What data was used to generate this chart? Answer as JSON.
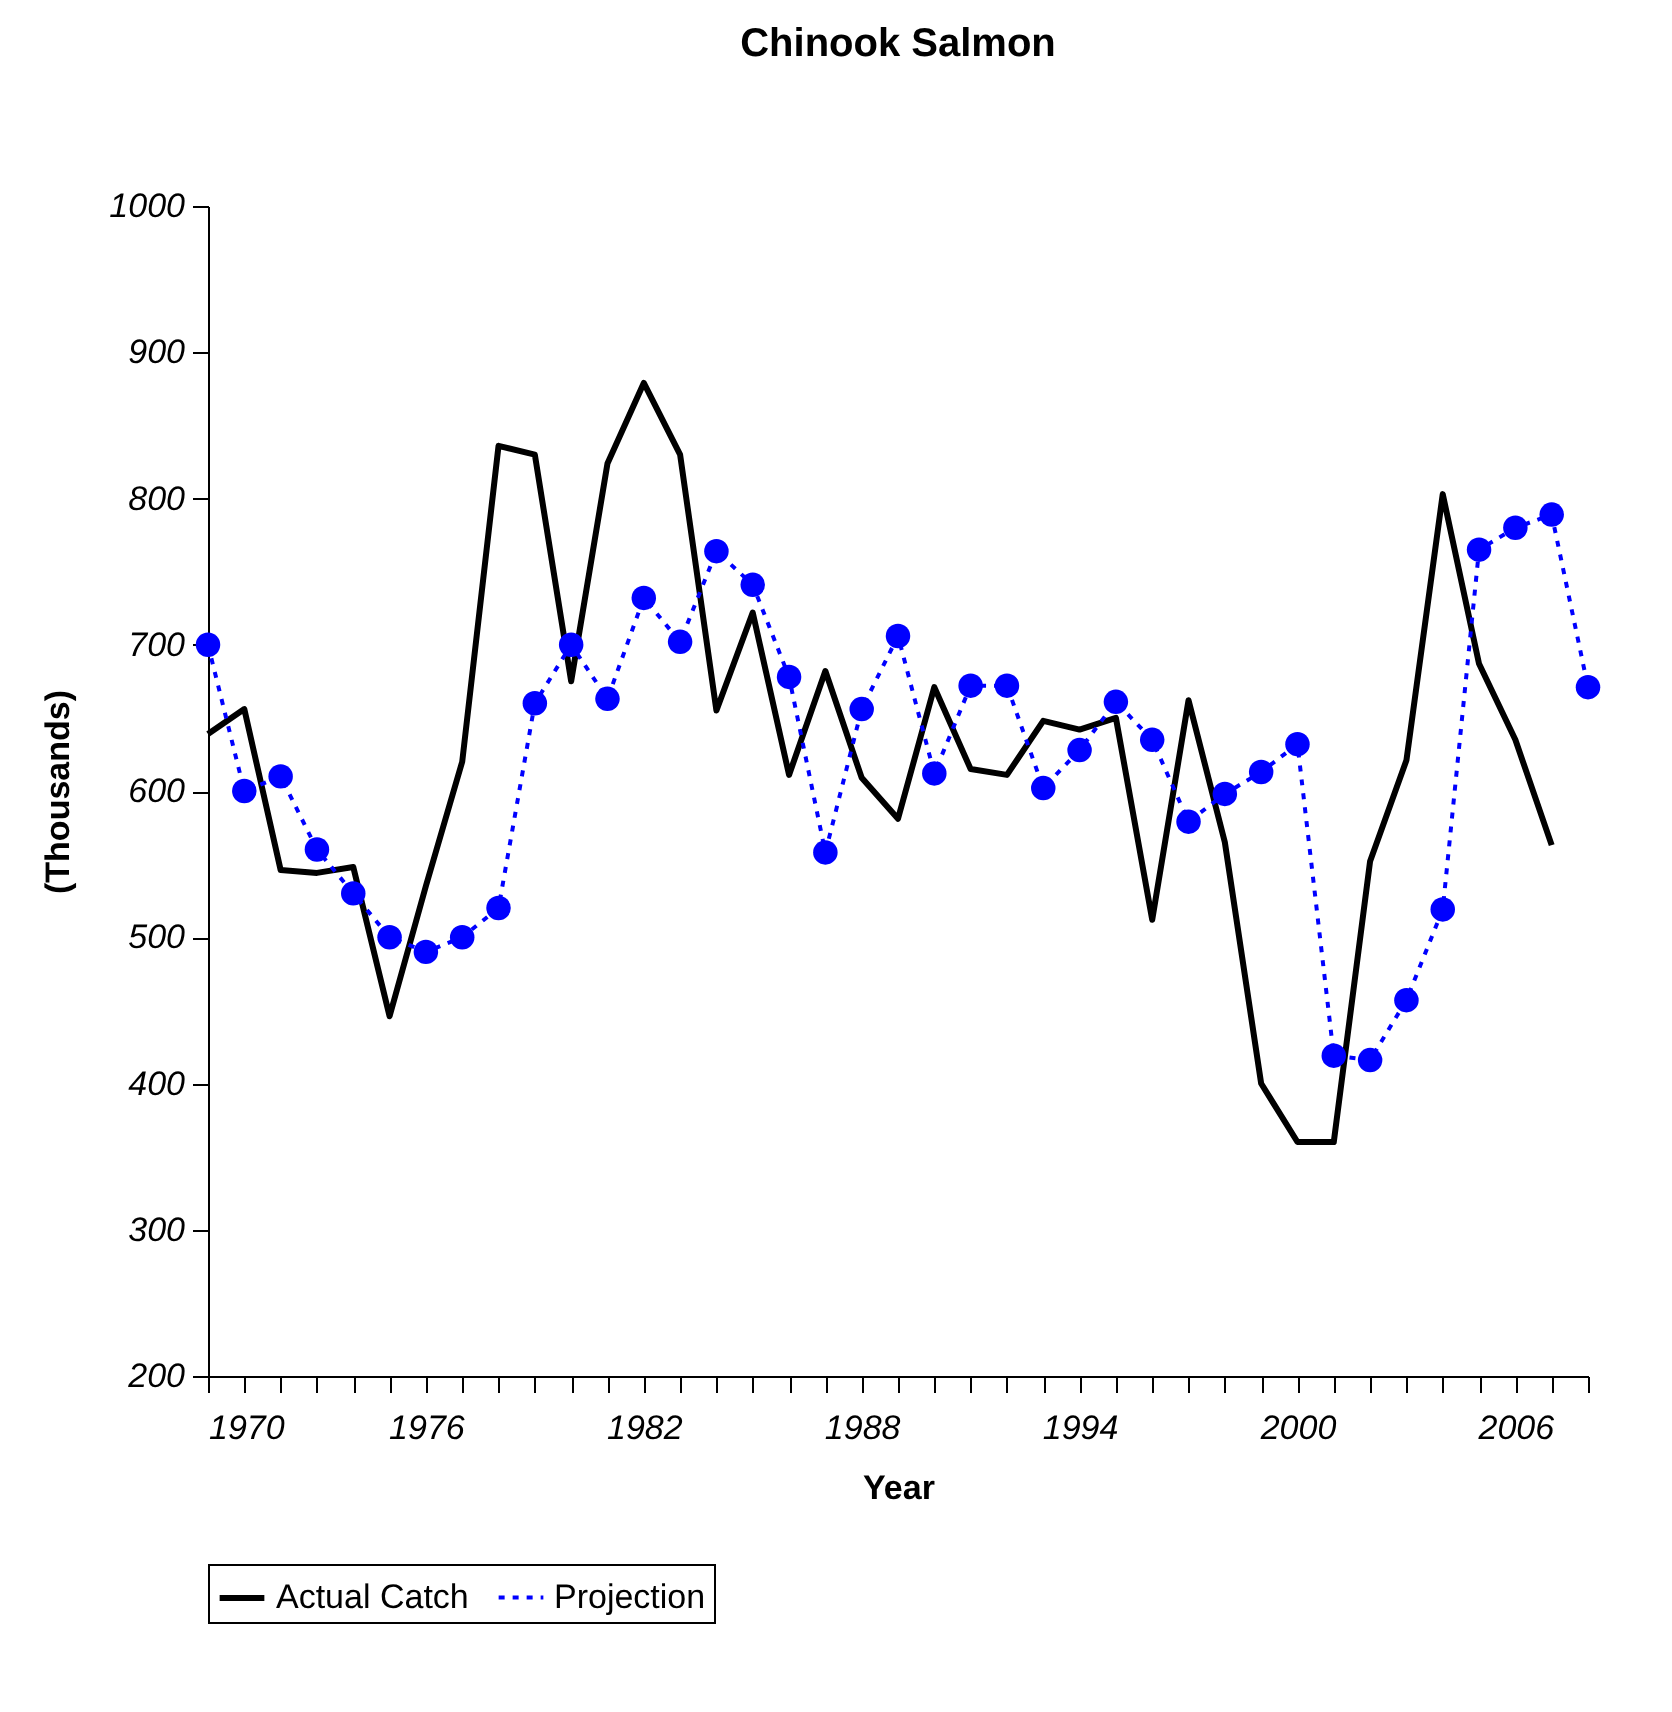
{
  "chart_data": {
    "type": "line",
    "title": "Chinook Salmon",
    "xlabel": "Year",
    "ylabel": "(Thousands)",
    "x": [
      1970,
      1971,
      1972,
      1973,
      1974,
      1975,
      1976,
      1977,
      1978,
      1979,
      1980,
      1981,
      1982,
      1983,
      1984,
      1985,
      1986,
      1987,
      1988,
      1989,
      1990,
      1991,
      1992,
      1993,
      1994,
      1995,
      1996,
      1997,
      1998,
      1999,
      2000,
      2001,
      2002,
      2003,
      2004,
      2005,
      2006,
      2007,
      2008
    ],
    "series": [
      {
        "name": "Actual Catch",
        "color": "#000000",
        "line_style": "solid",
        "marker": "none",
        "values": [
          639,
          656,
          546,
          544,
          548,
          446,
          535,
          620,
          836,
          830,
          675,
          824,
          879,
          830,
          655,
          722,
          611,
          682,
          609,
          581,
          671,
          615,
          611,
          648,
          642,
          650,
          512,
          662,
          565,
          400,
          360,
          360,
          552,
          621,
          803,
          687,
          635,
          563,
          null
        ]
      },
      {
        "name": "Projection",
        "color": "#0000ff",
        "line_style": "dotted",
        "marker": "circle",
        "values": [
          700,
          600,
          610,
          560,
          530,
          500,
          490,
          500,
          520,
          660,
          700,
          663,
          732,
          702,
          764,
          741,
          678,
          558,
          656,
          706,
          612,
          672,
          672,
          602,
          628,
          661,
          635,
          579,
          598,
          613,
          632,
          419,
          416,
          457,
          519,
          765,
          780,
          789,
          671
        ]
      }
    ],
    "xlim": [
      1970,
      2008
    ],
    "xticks": [
      1970,
      {
        "value": 1971,
        "label": null
      },
      {
        "value": 1972,
        "label": null
      },
      {
        "value": 1973,
        "label": null
      },
      {
        "value": 1974,
        "label": null
      },
      {
        "value": 1975,
        "label": null
      },
      1976,
      {
        "value": 1977,
        "label": null
      },
      {
        "value": 1978,
        "label": null
      },
      {
        "value": 1979,
        "label": null
      },
      {
        "value": 1980,
        "label": null
      },
      {
        "value": 1981,
        "label": null
      },
      1982,
      {
        "value": 1983,
        "label": null
      },
      {
        "value": 1984,
        "label": null
      },
      {
        "value": 1985,
        "label": null
      },
      {
        "value": 1986,
        "label": null
      },
      {
        "value": 1987,
        "label": null
      },
      1988,
      {
        "value": 1989,
        "label": null
      },
      {
        "value": 1990,
        "label": null
      },
      {
        "value": 1991,
        "label": null
      },
      {
        "value": 1992,
        "label": null
      },
      {
        "value": 1993,
        "label": null
      },
      1994,
      {
        "value": 1995,
        "label": null
      },
      {
        "value": 1996,
        "label": null
      },
      {
        "value": 1997,
        "label": null
      },
      {
        "value": 1998,
        "label": null
      },
      {
        "value": 1999,
        "label": null
      },
      2000,
      {
        "value": 2001,
        "label": null
      },
      {
        "value": 2002,
        "label": null
      },
      {
        "value": 2003,
        "label": null
      },
      {
        "value": 2004,
        "label": null
      },
      {
        "value": 2005,
        "label": null
      },
      2006,
      {
        "value": 2007,
        "label": null
      },
      {
        "value": 2008,
        "label": null
      }
    ],
    "ylim": [
      200,
      1000
    ],
    "yticks": [
      200,
      300,
      400,
      500,
      600,
      700,
      800,
      900,
      1000
    ],
    "grid": false,
    "legend": "bottom"
  }
}
